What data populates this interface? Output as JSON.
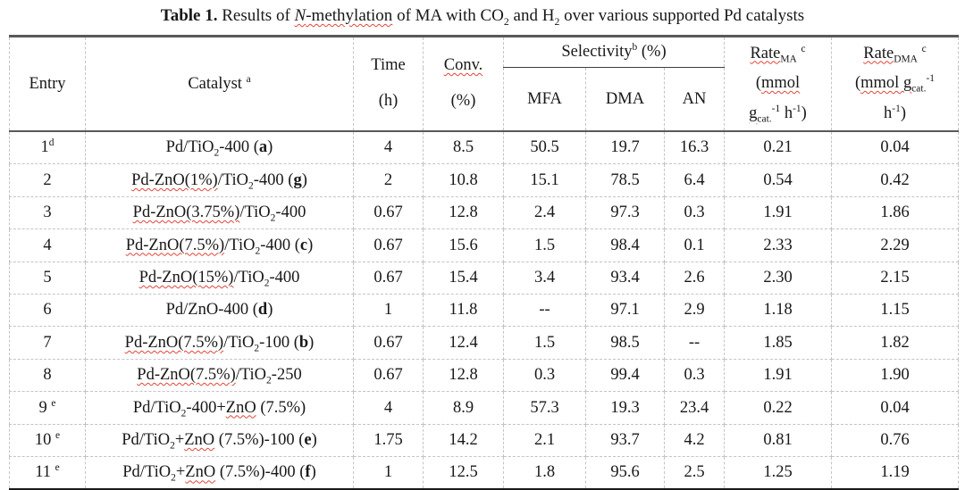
{
  "caption": {
    "text": "*Table 1.* Results of ~/N/-methylation~ of MA with CO_2_ and H_2_ over various supported Pd catalysts"
  },
  "header": {
    "entry": "Entry",
    "catalyst": "Catalyst ^a^",
    "time": "Time|(h)",
    "conv": "~Conv.~|(%)",
    "selectivity": "Selectivity^b^ (%)",
    "mfa": "MFA",
    "dma": "DMA",
    "an": "AN",
    "rate_ma": "~Rate_MA_~ ^c^|(~mmol~|~g_cat._~^-1^ h^-1^)",
    "rate_dma": "~Rate_DMA_~ ^c^|(~mmol g_cat._~^-1^|h^-1^)"
  },
  "rows": [
    {
      "entry": "1^d^",
      "catalyst": "Pd/TiO_2_-400 (*a*)",
      "time": "4",
      "conv": "8.5",
      "mfa": "50.5",
      "dma": "19.7",
      "an": "16.3",
      "rate_ma": "0.21",
      "rate_dma": "0.04"
    },
    {
      "entry": "2",
      "catalyst": "~Pd-ZnO(1%)~/TiO_2_-400 (*g*)",
      "time": "2",
      "conv": "10.8",
      "mfa": "15.1",
      "dma": "78.5",
      "an": "6.4",
      "rate_ma": "0.54",
      "rate_dma": "0.42"
    },
    {
      "entry": "3",
      "catalyst": "~Pd-ZnO(3.75%)~/TiO_2_-400",
      "time": "0.67",
      "conv": "12.8",
      "mfa": "2.4",
      "dma": "97.3",
      "an": "0.3",
      "rate_ma": "1.91",
      "rate_dma": "1.86"
    },
    {
      "entry": "4",
      "catalyst": "~Pd-ZnO(7.5%)~/TiO_2_-400 (*c*)",
      "time": "0.67",
      "conv": "15.6",
      "mfa": "1.5",
      "dma": "98.4",
      "an": "0.1",
      "rate_ma": "2.33",
      "rate_dma": "2.29"
    },
    {
      "entry": "5",
      "catalyst": "~Pd-ZnO(15%)~/TiO_2_-400",
      "time": "0.67",
      "conv": "15.4",
      "mfa": "3.4",
      "dma": "93.4",
      "an": "2.6",
      "rate_ma": "2.30",
      "rate_dma": "2.15"
    },
    {
      "entry": "6",
      "catalyst": "Pd/ZnO-400 (*d*)",
      "time": "1",
      "conv": "11.8",
      "mfa": "--",
      "dma": "97.1",
      "an": "2.9",
      "rate_ma": "1.18",
      "rate_dma": "1.15"
    },
    {
      "entry": "7",
      "catalyst": "~Pd-ZnO(7.5%)~/TiO_2_-100 (*b*)",
      "time": "0.67",
      "conv": "12.4",
      "mfa": "1.5",
      "dma": "98.5",
      "an": "--",
      "rate_ma": "1.85",
      "rate_dma": "1.82"
    },
    {
      "entry": "8",
      "catalyst": "~Pd-ZnO(7.5%)~/TiO_2_-250",
      "time": "0.67",
      "conv": "12.8",
      "mfa": "0.3",
      "dma": "99.4",
      "an": "0.3",
      "rate_ma": "1.91",
      "rate_dma": "1.90"
    },
    {
      "entry": "9 ^e^",
      "catalyst": "Pd/TiO_2_-400+~ZnO~ (7.5%)",
      "time": "4",
      "conv": "8.9",
      "mfa": "57.3",
      "dma": "19.3",
      "an": "23.4",
      "rate_ma": "0.22",
      "rate_dma": "0.04"
    },
    {
      "entry": "10 ^e^",
      "catalyst": "Pd/TiO_2_+~ZnO~ (7.5%)-100 (*e*)",
      "time": "1.75",
      "conv": "14.2",
      "mfa": "2.1",
      "dma": "93.7",
      "an": "4.2",
      "rate_ma": "0.81",
      "rate_dma": "0.76"
    },
    {
      "entry": "11 ^e^",
      "catalyst": "Pd/TiO_2_+~ZnO~ (7.5%)-400 (*f*)",
      "time": "1",
      "conv": "12.5",
      "mfa": "1.8",
      "dma": "95.6",
      "an": "2.5",
      "rate_ma": "1.25",
      "rate_dma": "1.19"
    }
  ],
  "colors": {
    "spellcheck_squiggle": "#e0453a",
    "header_rule": "#595959",
    "bottom_rule": "#1a1a1a",
    "grid_dashed": "#c4c4c4",
    "text": "#181818",
    "background": "#ffffff"
  }
}
